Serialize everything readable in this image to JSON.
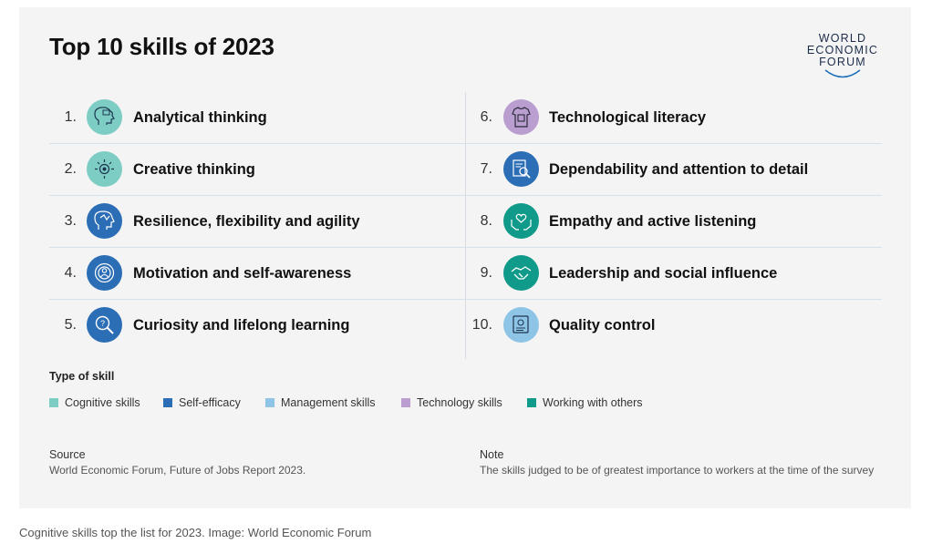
{
  "title": "Top 10 skills of 2023",
  "logo": {
    "lines": [
      "WORLD",
      "ECONOMIC",
      "FORUM"
    ]
  },
  "chart_data": {
    "type": "table",
    "title": "Top 10 skills of 2023",
    "items": [
      {
        "rank": "1.",
        "skill": "Analytical thinking",
        "type": "Cognitive skills",
        "icon": "brain-icon"
      },
      {
        "rank": "2.",
        "skill": "Creative thinking",
        "type": "Cognitive skills",
        "icon": "lightbulb-head-icon"
      },
      {
        "rank": "3.",
        "skill": "Resilience, flexibility and agility",
        "type": "Self-efficacy",
        "icon": "resilience-head-icon"
      },
      {
        "rank": "4.",
        "skill": "Motivation and self-awareness",
        "type": "Self-efficacy",
        "icon": "person-target-icon"
      },
      {
        "rank": "5.",
        "skill": "Curiosity and lifelong learning",
        "type": "Self-efficacy",
        "icon": "magnifier-question-icon"
      },
      {
        "rank": "6.",
        "skill": "Technological literacy",
        "type": "Technology skills",
        "icon": "chip-shirt-icon"
      },
      {
        "rank": "7.",
        "skill": "Dependability and attention to detail",
        "type": "Self-efficacy",
        "icon": "document-magnifier-icon"
      },
      {
        "rank": "8.",
        "skill": "Empathy and active listening",
        "type": "Working with others",
        "icon": "heart-hands-icon"
      },
      {
        "rank": "9.",
        "skill": "Leadership and social influence",
        "type": "Working with others",
        "icon": "handshake-icon"
      },
      {
        "rank": "10.",
        "skill": "Quality control",
        "type": "Management skills",
        "icon": "certificate-icon"
      }
    ],
    "legend": {
      "title": "Type of skill",
      "entries": [
        {
          "name": "Cognitive skills",
          "color": "#7ecdc4"
        },
        {
          "name": "Self-efficacy",
          "color": "#2b6eb5"
        },
        {
          "name": "Management skills",
          "color": "#8ec4e6"
        },
        {
          "name": "Technology skills",
          "color": "#b99ecf"
        },
        {
          "name": "Working with others",
          "color": "#0f9a89"
        }
      ]
    }
  },
  "source": {
    "label": "Source",
    "text": "World Economic Forum, Future of Jobs Report 2023."
  },
  "note": {
    "label": "Note",
    "text": "The skills judged to be of greatest importance to workers at the time of the survey"
  },
  "caption": "Cognitive skills top the list for 2023. Image: World Economic Forum"
}
